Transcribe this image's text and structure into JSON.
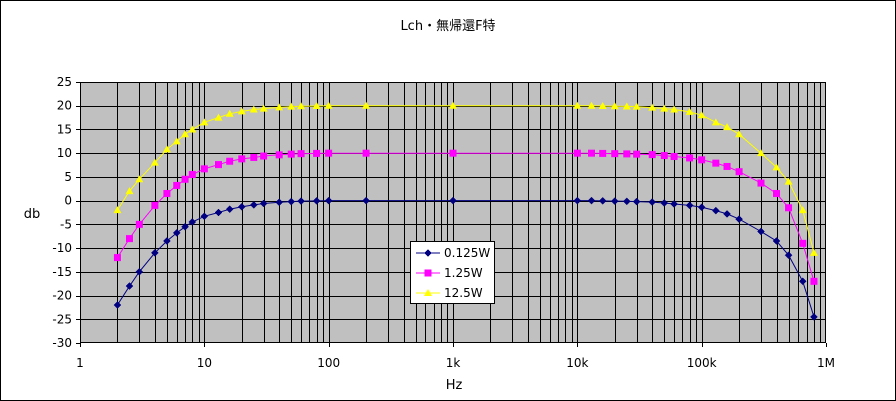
{
  "chart_data": {
    "type": "line",
    "title": "Lch・無帰還F特",
    "xlabel": "Hz",
    "ylabel": "db",
    "x_scale": "log",
    "xlim": [
      1,
      1000000
    ],
    "ylim": [
      -30,
      25
    ],
    "y_major_step": 5,
    "x_tick_labels": [
      "1",
      "10",
      "100",
      "1k",
      "10k",
      "100k",
      "1M"
    ],
    "y_tick_labels": [
      "25",
      "20",
      "15",
      "10",
      "5",
      "0",
      "-5",
      "-10",
      "-15",
      "-20",
      "-25",
      "-30"
    ],
    "grid": true,
    "legend_position": "center-left",
    "colors": {
      "plot_background": "#c0c0c0",
      "gridline": "#000000",
      "frame": "#000000"
    },
    "series": [
      {
        "name": "0.125W",
        "color": "#000080",
        "marker": "diamond",
        "x": [
          2,
          2.5,
          3,
          4,
          5,
          6,
          7,
          8,
          10,
          13,
          16,
          20,
          25,
          30,
          40,
          50,
          60,
          80,
          100,
          200,
          1000,
          10000,
          13000,
          16000,
          20000,
          25000,
          30000,
          40000,
          50000,
          60000,
          80000,
          100000,
          130000,
          160000,
          200000,
          300000,
          400000,
          500000,
          650000,
          800000
        ],
        "values": [
          -22,
          -18,
          -15,
          -11,
          -8.5,
          -6.8,
          -5.5,
          -4.5,
          -3.3,
          -2.5,
          -1.8,
          -1.3,
          -0.9,
          -0.6,
          -0.35,
          -0.2,
          -0.1,
          -0.05,
          0,
          0,
          0,
          0,
          0,
          -0.05,
          -0.1,
          -0.15,
          -0.2,
          -0.3,
          -0.5,
          -0.7,
          -1.0,
          -1.4,
          -2.1,
          -2.8,
          -3.9,
          -6.5,
          -8.5,
          -11.5,
          -17,
          -24.5
        ]
      },
      {
        "name": "1.25W",
        "color": "#ff00ff",
        "marker": "square",
        "x": [
          2,
          2.5,
          3,
          4,
          5,
          6,
          7,
          8,
          10,
          13,
          16,
          20,
          25,
          30,
          40,
          50,
          60,
          80,
          100,
          200,
          1000,
          10000,
          13000,
          16000,
          20000,
          25000,
          30000,
          40000,
          50000,
          60000,
          80000,
          100000,
          130000,
          160000,
          200000,
          300000,
          400000,
          500000,
          650000,
          800000
        ],
        "values": [
          -12,
          -8,
          -5,
          -1,
          1.5,
          3.2,
          4.5,
          5.5,
          6.7,
          7.6,
          8.3,
          8.8,
          9.1,
          9.4,
          9.65,
          9.8,
          9.9,
          9.95,
          10,
          10,
          10,
          10,
          10,
          9.95,
          9.9,
          9.85,
          9.8,
          9.7,
          9.5,
          9.3,
          9.0,
          8.6,
          7.9,
          7.2,
          6.1,
          3.7,
          1.5,
          -1.5,
          -9,
          -17
        ]
      },
      {
        "name": "12.5W",
        "color": "#ffff00",
        "marker": "triangle",
        "x": [
          2,
          2.5,
          3,
          4,
          5,
          6,
          7,
          8,
          10,
          13,
          16,
          20,
          25,
          30,
          40,
          50,
          60,
          80,
          100,
          200,
          1000,
          10000,
          13000,
          16000,
          20000,
          25000,
          30000,
          40000,
          50000,
          60000,
          80000,
          100000,
          130000,
          160000,
          200000,
          300000,
          400000,
          500000,
          650000,
          800000
        ],
        "values": [
          -2,
          2,
          4.5,
          8,
          10.8,
          12.5,
          14,
          15,
          16.5,
          17.5,
          18.3,
          18.8,
          19.2,
          19.4,
          19.65,
          19.8,
          19.9,
          19.95,
          20,
          20,
          20,
          20,
          20,
          19.95,
          19.9,
          19.85,
          19.8,
          19.6,
          19.4,
          19.2,
          18.7,
          18,
          16.5,
          15.5,
          14,
          10,
          7,
          4,
          -2,
          -11
        ]
      }
    ]
  }
}
